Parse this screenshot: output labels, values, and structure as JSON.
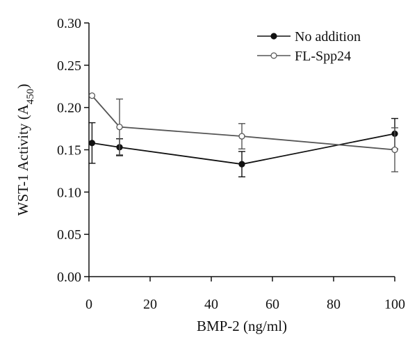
{
  "chart_data": {
    "type": "line",
    "xlabel": "BMP-2 (ng/ml)",
    "ylabel": "WST-1 Activity (A",
    "ylabel_sub": "450",
    "ylabel_close": ")",
    "xlim": [
      0,
      100
    ],
    "ylim": [
      0,
      0.3
    ],
    "x_ticks": [
      0,
      20,
      40,
      60,
      80,
      100
    ],
    "x_tick_labels": [
      "0",
      "20",
      "40",
      "60",
      "80",
      "100"
    ],
    "y_ticks": [
      0,
      0.05,
      0.1,
      0.15,
      0.2,
      0.25,
      0.3
    ],
    "y_tick_labels": [
      "0.00",
      "0.05",
      "0.10",
      "0.15",
      "0.20",
      "0.25",
      "0.30"
    ],
    "grid": false,
    "legend_position": "top-right",
    "series": [
      {
        "name": "No addition",
        "marker": "filled-circle",
        "color": "#111111",
        "x": [
          1,
          10,
          50,
          100
        ],
        "y": [
          0.158,
          0.153,
          0.133,
          0.169
        ],
        "error": [
          0.024,
          0.01,
          0.015,
          0.018
        ]
      },
      {
        "name": "FL-Spp24",
        "marker": "open-circle",
        "color": "#555555",
        "x": [
          1,
          10,
          50,
          100
        ],
        "y": [
          0.214,
          0.177,
          0.166,
          0.15
        ],
        "error": [
          0.0,
          0.033,
          0.015,
          0.026
        ]
      }
    ]
  }
}
